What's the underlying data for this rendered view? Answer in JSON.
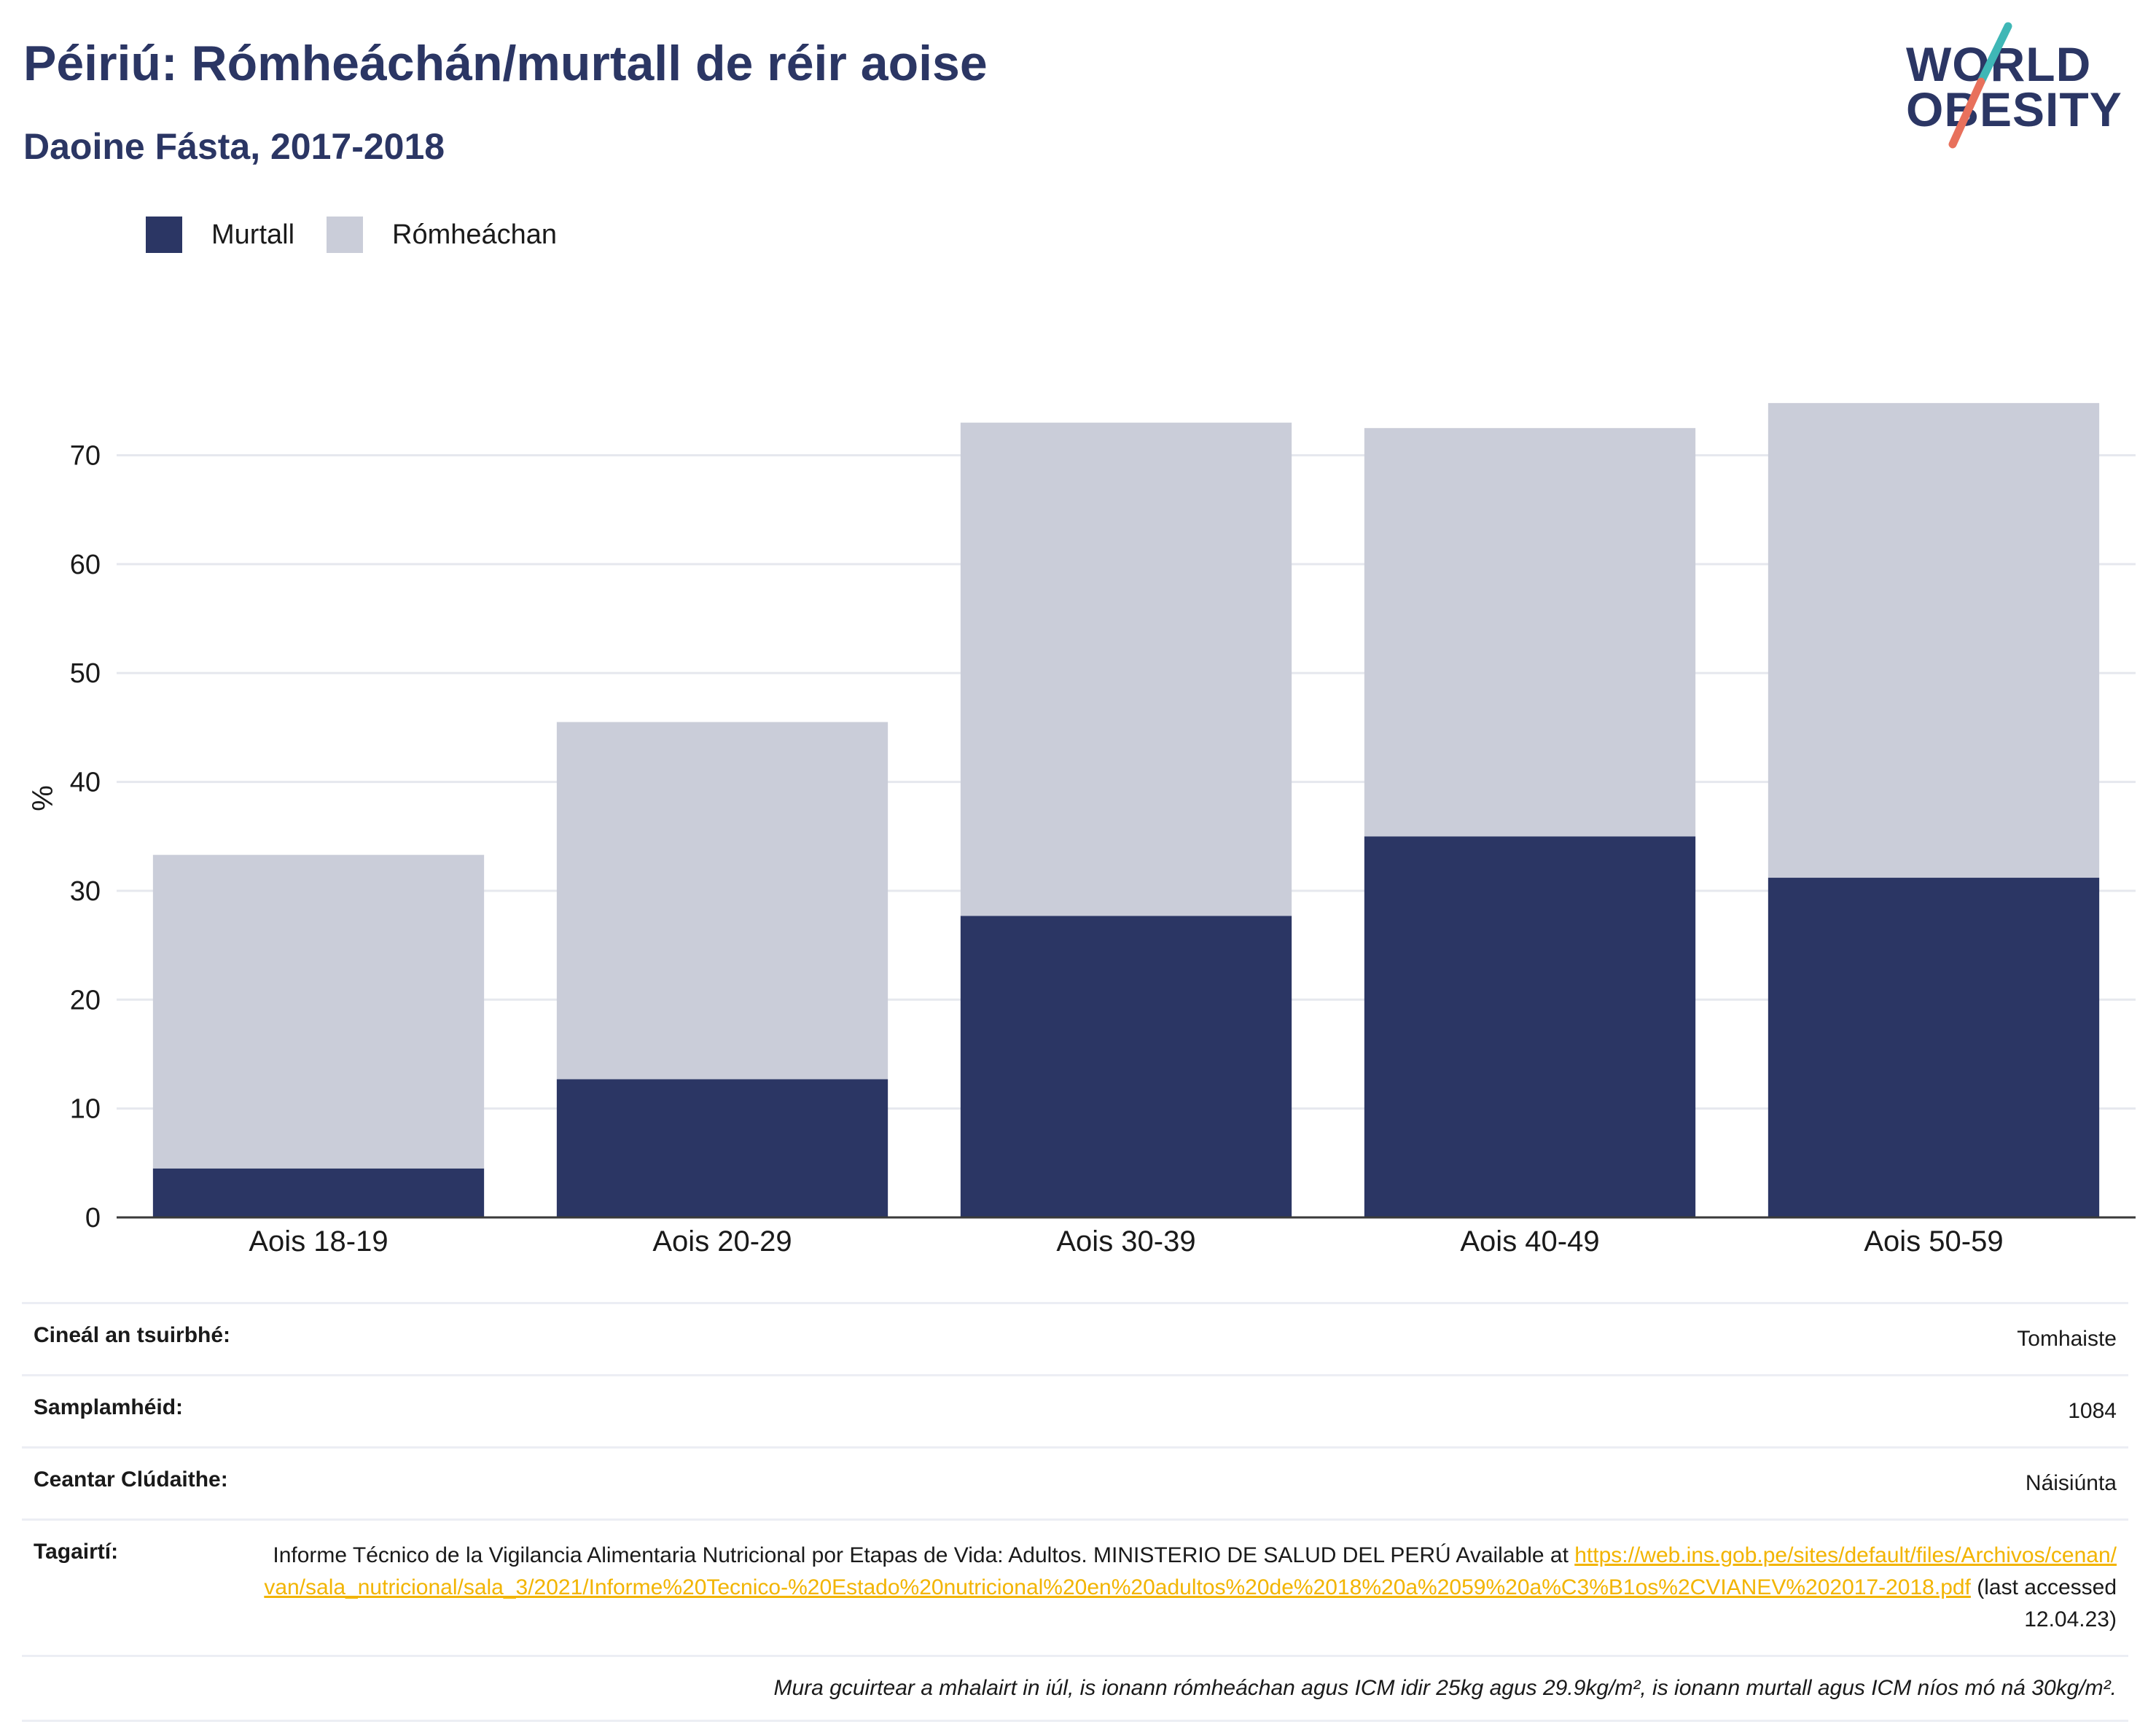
{
  "header": {
    "title": "Péiriú: Rómheáchán/murtall de réir aoise",
    "subtitle": "Daoine Fásta, 2017-2018"
  },
  "logo": {
    "line1": "WORLD",
    "line2": "OBESITY",
    "colors": {
      "text": "#2b3664",
      "slash_top": "#3fb7b6",
      "slash_bottom": "#e8715c"
    }
  },
  "legend": [
    {
      "label": "Murtall",
      "color": "#2b3664"
    },
    {
      "label": "Rómheáchan",
      "color": "#cacdd9"
    }
  ],
  "chart_data": {
    "type": "bar",
    "stacked": true,
    "categories": [
      "Aois 18-19",
      "Aois 20-29",
      "Aois 30-39",
      "Aois 40-49",
      "Aois 50-59"
    ],
    "series": [
      {
        "name": "Murtall",
        "values": [
          4.5,
          12.7,
          27.7,
          35.0,
          31.2
        ],
        "color": "#2b3664"
      },
      {
        "name": "Rómheáchan",
        "values": [
          28.8,
          32.8,
          45.3,
          37.5,
          43.6
        ],
        "color": "#cacdd9"
      }
    ],
    "ylabel": "%",
    "ylim": [
      0,
      77
    ],
    "yticks": [
      0,
      10,
      20,
      30,
      40,
      50,
      60,
      70
    ],
    "grid": true,
    "legend_position": "top-left"
  },
  "meta": {
    "survey_type": {
      "label": "Cineál an tsuirbhé:",
      "value": "Tomhaiste"
    },
    "sample_size": {
      "label": "Samplamhéid:",
      "value": "1084"
    },
    "coverage": {
      "label": "Ceantar Clúdaithe:",
      "value": "Náisiúnta"
    },
    "references": {
      "label": "Tagairtí:",
      "text": "Informe Técnico de la Vigilancia Alimentaria Nutricional por Etapas de Vida: Adultos. MINISTERIO DE SALUD DEL PERÚ Available at",
      "link": "https://web.ins.gob.pe/sites/default/files/Archivos/cenan/van/sala_nutricional/sala_3/2021/Informe%20Tecnico-%20Estado%20nutricional%20en%20adultos%20de%2018%20a%2059%20a%C3%B1os%2CVIANEV%202017-2018.pdf",
      "suffix": "(last accessed 12.04.23)"
    },
    "note": "Mura gcuirtear a mhalairt in iúl, is ionann rómheáchan agus ICM idir 25kg agus 29.9kg/m², is ionann murtall agus ICM níos mó ná 30kg/m²."
  }
}
